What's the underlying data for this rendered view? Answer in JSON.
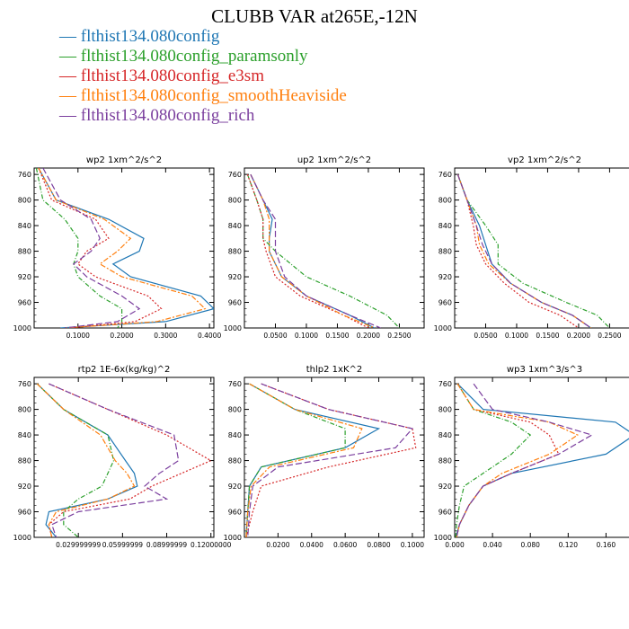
{
  "figure": {
    "title": "CLUBB VAR at265E,-12N"
  },
  "legend": [
    {
      "label": "flthist134.080config",
      "color": "#1f77b4"
    },
    {
      "label": "flthist134.080config_paramsonly",
      "color": "#2ca02c"
    },
    {
      "label": "flthist134.080config_e3sm",
      "color": "#d62728"
    },
    {
      "label": "flthist134.080config_smoothHeaviside",
      "color": "#ff7f0e"
    },
    {
      "label": "flthist134.080config_rich",
      "color": "#7b3f9e"
    }
  ],
  "chart_data": [
    {
      "type": "line",
      "title": "wp2   1xm^2/s^2",
      "ylim": [
        1000,
        750
      ],
      "yticks": [
        "760",
        "800",
        "840",
        "880",
        "920",
        "960",
        "1000"
      ],
      "xlim": [
        0,
        0.41
      ],
      "xticks": [
        0.1,
        0.2,
        0.3,
        0.4
      ],
      "xtick_labels": [
        "0.1000",
        "0.2000",
        "0.3000",
        "0.4000"
      ],
      "levels": [
        750,
        800,
        830,
        860,
        880,
        900,
        920,
        950,
        970,
        990,
        1000
      ],
      "series": [
        {
          "name": "flthist134.080config",
          "color": "#1f77b4",
          "dash": "",
          "values": [
            0.01,
            0.05,
            0.17,
            0.25,
            0.24,
            0.18,
            0.22,
            0.38,
            0.41,
            0.3,
            0.06
          ]
        },
        {
          "name": "flthist134.080config_paramsonly",
          "color": "#2ca02c",
          "dash": "5,2,1,2",
          "values": [
            0.005,
            0.02,
            0.07,
            0.1,
            0.1,
            0.09,
            0.1,
            0.15,
            0.2,
            0.2,
            0.19
          ]
        },
        {
          "name": "flthist134.080config_e3sm",
          "color": "#d62728",
          "dash": "2,2",
          "values": [
            0.01,
            0.04,
            0.14,
            0.17,
            0.12,
            0.1,
            0.14,
            0.26,
            0.29,
            0.23,
            0.08
          ]
        },
        {
          "name": "flthist134.080config_smoothHeaviside",
          "color": "#ff7f0e",
          "dash": "6,2,2,2",
          "values": [
            0.01,
            0.05,
            0.16,
            0.22,
            0.19,
            0.15,
            0.2,
            0.36,
            0.39,
            0.28,
            0.07
          ]
        },
        {
          "name": "flthist134.080config_rich",
          "color": "#7b3f9e",
          "dash": "7,3",
          "values": [
            0.02,
            0.06,
            0.13,
            0.15,
            0.13,
            0.09,
            0.12,
            0.2,
            0.24,
            0.19,
            0.07
          ]
        }
      ]
    },
    {
      "type": "line",
      "title": "up2   1xm^2/s^2",
      "ylim": [
        1000,
        750
      ],
      "yticks": [
        "760",
        "800",
        "840",
        "880",
        "920",
        "960",
        "1000"
      ],
      "xlim": [
        0,
        0.29
      ],
      "xticks": [
        0.05,
        0.1,
        0.15,
        0.2,
        0.25
      ],
      "xtick_labels": [
        "0.0500",
        "0.1000",
        "0.1500",
        "0.2000",
        "0.2500"
      ],
      "levels": [
        760,
        800,
        830,
        860,
        880,
        920,
        950,
        980,
        1000
      ],
      "series": [
        {
          "name": "flthist134.080config",
          "color": "#1f77b4",
          "dash": "",
          "values": [
            0.01,
            0.03,
            0.045,
            0.04,
            0.04,
            0.06,
            0.1,
            0.17,
            0.21
          ]
        },
        {
          "name": "flthist134.080config_paramsonly",
          "color": "#2ca02c",
          "dash": "5,2,1,2",
          "values": [
            0.005,
            0.02,
            0.03,
            0.03,
            0.05,
            0.1,
            0.17,
            0.23,
            0.25
          ]
        },
        {
          "name": "flthist134.080config_e3sm",
          "color": "#d62728",
          "dash": "2,2",
          "values": [
            0.005,
            0.02,
            0.03,
            0.03,
            0.035,
            0.05,
            0.09,
            0.16,
            0.2
          ]
        },
        {
          "name": "flthist134.080config_smoothHeaviside",
          "color": "#ff7f0e",
          "dash": "6,2,2,2",
          "values": [
            0.01,
            0.03,
            0.04,
            0.04,
            0.04,
            0.06,
            0.1,
            0.16,
            0.21
          ]
        },
        {
          "name": "flthist134.080config_rich",
          "color": "#7b3f9e",
          "dash": "7,3",
          "values": [
            0.01,
            0.03,
            0.05,
            0.05,
            0.05,
            0.065,
            0.1,
            0.17,
            0.22
          ]
        }
      ]
    },
    {
      "type": "line",
      "title": "vp2   1xm^2/s^2",
      "ylim": [
        1000,
        750
      ],
      "yticks": [
        "760",
        "800",
        "840",
        "880",
        "920",
        "960",
        "1000"
      ],
      "xlim": [
        0,
        0.29
      ],
      "xticks": [
        0.05,
        0.1,
        0.15,
        0.2,
        0.25
      ],
      "xtick_labels": [
        "0.0500",
        "0.1000",
        "0.1500",
        "0.2000",
        "0.2500"
      ],
      "levels": [
        760,
        800,
        840,
        870,
        900,
        930,
        960,
        980,
        1000
      ],
      "series": [
        {
          "name": "flthist134.080config",
          "color": "#1f77b4",
          "dash": "",
          "values": [
            0.005,
            0.02,
            0.04,
            0.05,
            0.06,
            0.09,
            0.14,
            0.19,
            0.22
          ]
        },
        {
          "name": "flthist134.080config_paramsonly",
          "color": "#2ca02c",
          "dash": "5,2,1,2",
          "values": [
            0.005,
            0.02,
            0.05,
            0.07,
            0.07,
            0.11,
            0.18,
            0.23,
            0.25
          ]
        },
        {
          "name": "flthist134.080config_e3sm",
          "color": "#d62728",
          "dash": "2,2",
          "values": [
            0.005,
            0.02,
            0.03,
            0.035,
            0.05,
            0.08,
            0.12,
            0.17,
            0.2
          ]
        },
        {
          "name": "flthist134.080config_smoothHeaviside",
          "color": "#ff7f0e",
          "dash": "6,2,2,2",
          "values": [
            0.005,
            0.02,
            0.035,
            0.04,
            0.055,
            0.09,
            0.14,
            0.19,
            0.22
          ]
        },
        {
          "name": "flthist134.080config_rich",
          "color": "#7b3f9e",
          "dash": "7,3",
          "values": [
            0.005,
            0.02,
            0.035,
            0.045,
            0.06,
            0.09,
            0.14,
            0.19,
            0.22
          ]
        }
      ]
    },
    {
      "type": "line",
      "title": "rtp2   1E-6x(kg/kg)^2",
      "ylim": [
        1000,
        750
      ],
      "yticks": [
        "760",
        "800",
        "840",
        "880",
        "920",
        "960",
        "1000"
      ],
      "xlim": [
        0,
        0.122
      ],
      "xticks": [
        0.03,
        0.06,
        0.09,
        0.12
      ],
      "xtick_labels": [
        "0.029999999",
        "0.05999999",
        "0.08999999",
        "0.12000000"
      ],
      "levels": [
        760,
        800,
        840,
        880,
        900,
        920,
        940,
        960,
        980,
        1000
      ],
      "series": [
        {
          "name": "flthist134.080config",
          "color": "#1f77b4",
          "dash": "",
          "values": [
            0.002,
            0.02,
            0.05,
            0.062,
            0.068,
            0.07,
            0.05,
            0.01,
            0.008,
            0.015
          ]
        },
        {
          "name": "flthist134.080config_paramsonly",
          "color": "#2ca02c",
          "dash": "5,2,1,2",
          "values": [
            0.002,
            0.02,
            0.05,
            0.054,
            0.05,
            0.046,
            0.03,
            0.02,
            0.02,
            0.03
          ]
        },
        {
          "name": "flthist134.080config_e3sm",
          "color": "#d62728",
          "dash": "2,2",
          "values": [
            0.01,
            0.05,
            0.09,
            0.12,
            0.1,
            0.08,
            0.065,
            0.02,
            0.01,
            0.012
          ]
        },
        {
          "name": "flthist134.080config_smoothHeaviside",
          "color": "#ff7f0e",
          "dash": "6,2,2,2",
          "values": [
            0.002,
            0.02,
            0.045,
            0.055,
            0.063,
            0.068,
            0.05,
            0.015,
            0.01,
            0.012
          ]
        },
        {
          "name": "flthist134.080config_rich",
          "color": "#7b3f9e",
          "dash": "7,3",
          "values": [
            0.01,
            0.05,
            0.095,
            0.098,
            0.085,
            0.075,
            0.09,
            0.03,
            0.012,
            0.015
          ]
        }
      ]
    },
    {
      "type": "line",
      "title": "thlp2   1xK^2",
      "ylim": [
        1000,
        750
      ],
      "yticks": [
        "760",
        "800",
        "840",
        "880",
        "920",
        "960",
        "1000"
      ],
      "xlim": [
        0,
        0.107
      ],
      "xticks": [
        0.02,
        0.04,
        0.06,
        0.08,
        0.1
      ],
      "xtick_labels": [
        "0.0200",
        "0.0400",
        "0.0600",
        "0.0800",
        "0.1000"
      ],
      "levels": [
        760,
        800,
        830,
        860,
        890,
        920,
        960,
        1000
      ],
      "series": [
        {
          "name": "flthist134.080config",
          "color": "#1f77b4",
          "dash": "",
          "values": [
            0.003,
            0.03,
            0.08,
            0.06,
            0.01,
            0.003,
            0.002,
            0.001
          ]
        },
        {
          "name": "flthist134.080config_paramsonly",
          "color": "#2ca02c",
          "dash": "5,2,1,2",
          "values": [
            0.003,
            0.03,
            0.06,
            0.06,
            0.01,
            0.003,
            0.002,
            0.001
          ]
        },
        {
          "name": "flthist134.080config_e3sm",
          "color": "#d62728",
          "dash": "2,2",
          "values": [
            0.01,
            0.05,
            0.1,
            0.102,
            0.05,
            0.01,
            0.005,
            0.001
          ]
        },
        {
          "name": "flthist134.080config_smoothHeaviside",
          "color": "#ff7f0e",
          "dash": "6,2,2,2",
          "values": [
            0.003,
            0.03,
            0.07,
            0.065,
            0.015,
            0.004,
            0.002,
            0.001
          ]
        },
        {
          "name": "flthist134.080config_rich",
          "color": "#7b3f9e",
          "dash": "7,3",
          "values": [
            0.01,
            0.05,
            0.1,
            0.09,
            0.02,
            0.005,
            0.003,
            0.002
          ]
        }
      ]
    },
    {
      "type": "line",
      "title": "wp3   1xm^3/s^3",
      "ylim": [
        1000,
        750
      ],
      "yticks": [
        "760",
        "800",
        "840",
        "880",
        "920",
        "960",
        "1000"
      ],
      "xlim": [
        0,
        0.19
      ],
      "xticks": [
        0,
        0.04,
        0.08,
        0.12,
        0.16
      ],
      "xtick_labels": [
        "0.000",
        "0.040",
        "0.080",
        "0.120",
        "0.160"
      ],
      "levels": [
        760,
        800,
        820,
        840,
        870,
        900,
        920,
        950,
        980,
        1000
      ],
      "series": [
        {
          "name": "flthist134.080config",
          "color": "#1f77b4",
          "dash": "",
          "values": [
            0.003,
            0.03,
            0.17,
            0.19,
            0.16,
            0.06,
            0.03,
            0.015,
            0.005,
            0.001
          ]
        },
        {
          "name": "flthist134.080config_paramsonly",
          "color": "#2ca02c",
          "dash": "5,2,1,2",
          "values": [
            0.003,
            0.02,
            0.06,
            0.08,
            0.06,
            0.03,
            0.01,
            0.005,
            0.002,
            0.001
          ]
        },
        {
          "name": "flthist134.080config_e3sm",
          "color": "#d62728",
          "dash": "2,2",
          "values": [
            0.003,
            0.02,
            0.08,
            0.1,
            0.11,
            0.06,
            0.03,
            0.015,
            0.005,
            0.002
          ]
        },
        {
          "name": "flthist134.080config_smoothHeaviside",
          "color": "#ff7f0e",
          "dash": "6,2,2,2",
          "values": [
            0.003,
            0.02,
            0.1,
            0.13,
            0.1,
            0.05,
            0.03,
            0.015,
            0.005,
            0.002
          ]
        },
        {
          "name": "flthist134.080config_rich",
          "color": "#7b3f9e",
          "dash": "7,3",
          "values": [
            0.02,
            0.04,
            0.1,
            0.145,
            0.11,
            0.06,
            0.03,
            0.015,
            0.005,
            0.002
          ]
        }
      ]
    }
  ]
}
